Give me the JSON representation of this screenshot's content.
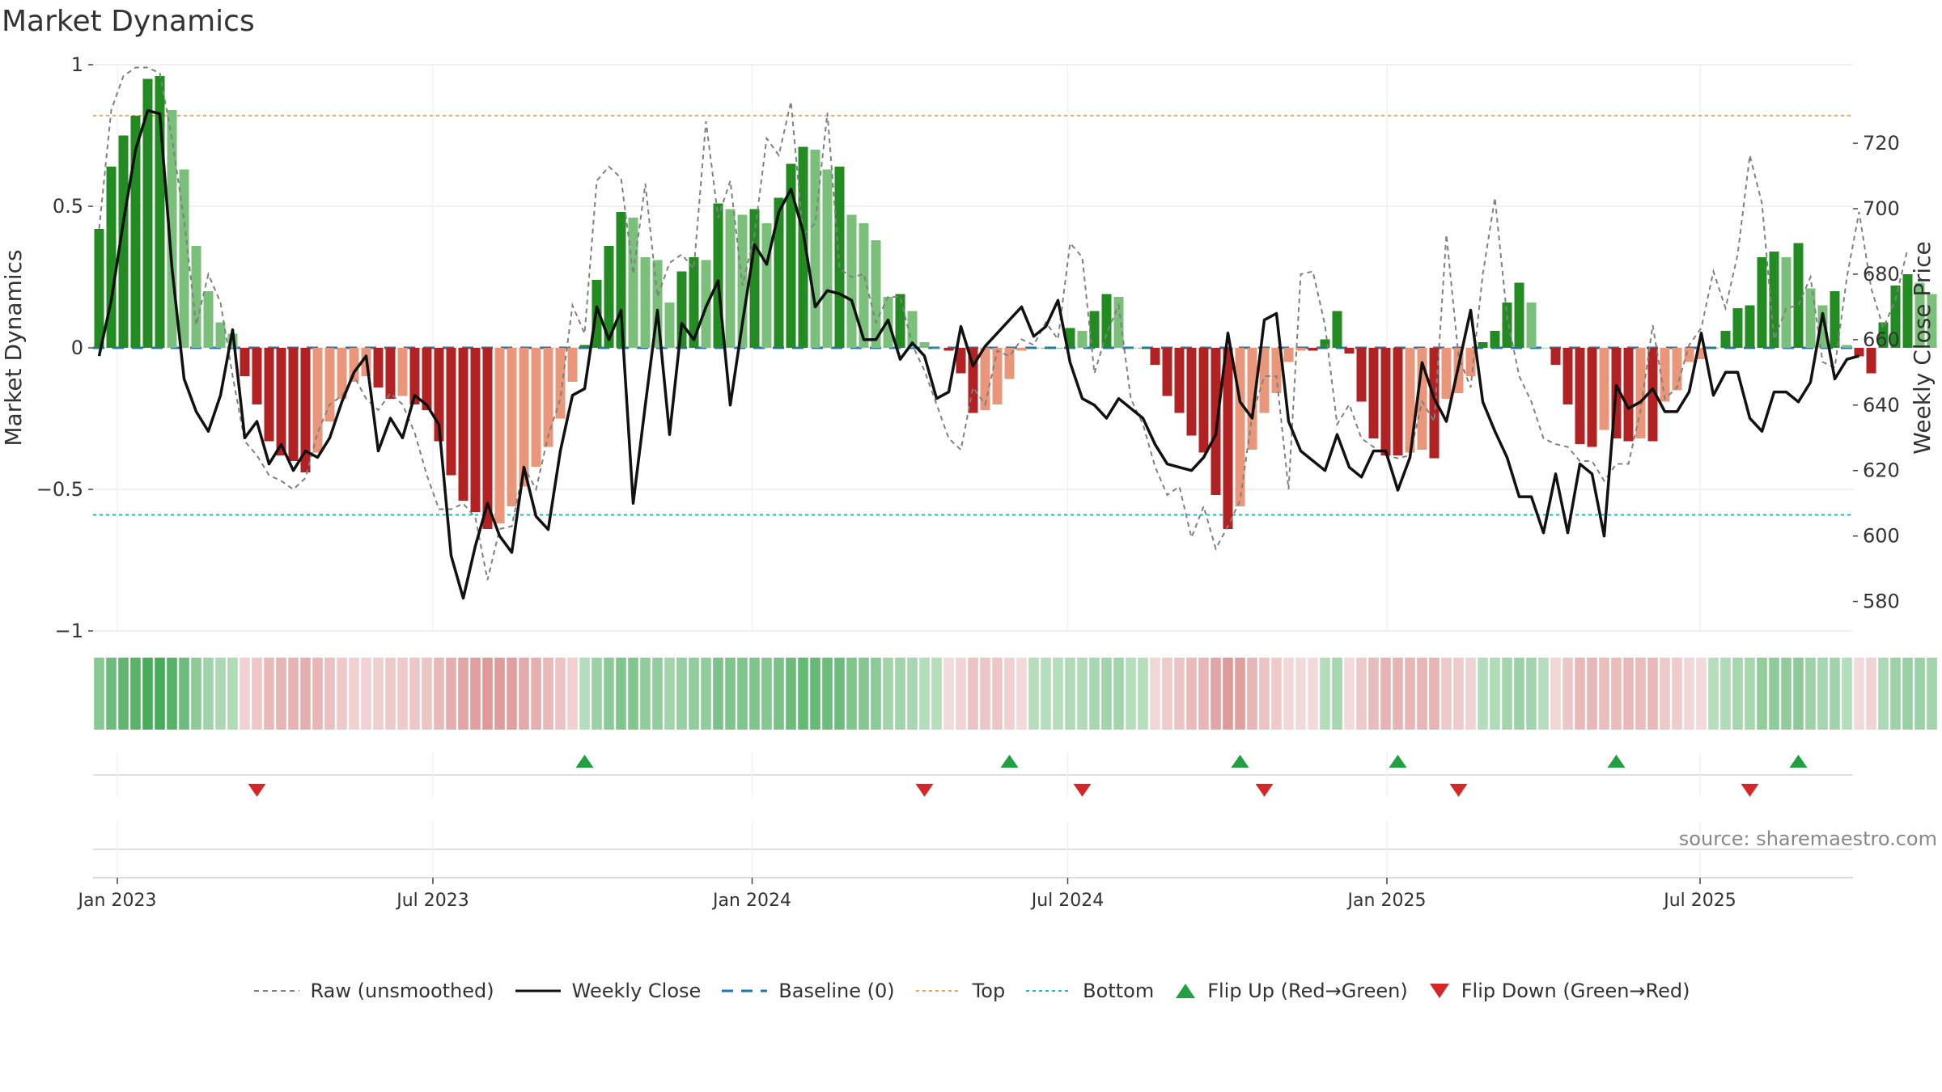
{
  "title": "Market Dynamics",
  "source": "source: sharemaestro.com",
  "legend": {
    "raw": "Raw (unsmoothed)",
    "close": "Weekly Close",
    "baseline": "Baseline (0)",
    "top": "Top",
    "bottom": "Bottom",
    "flip_up": "Flip Up (Red→Green)",
    "flip_down": "Flip Down (Green→Red)"
  },
  "chart_data": {
    "type": "bar",
    "title": "Market Dynamics",
    "ylabel": "Market Dynamics",
    "y2label": "Weekly Close Price",
    "ylim": [
      -1,
      1
    ],
    "y2lim": [
      571,
      744
    ],
    "yticks": [
      1,
      0.5,
      0,
      -0.5,
      -1
    ],
    "yticklabels": [
      "1",
      "0.5",
      "0",
      "−0.5",
      "−1"
    ],
    "y2ticks": [
      720,
      700,
      680,
      660,
      640,
      620,
      600,
      580
    ],
    "xticks": [
      {
        "label": "Jan 2023",
        "week": 2
      },
      {
        "label": "Jul 2023",
        "week": 28
      },
      {
        "label": "Jan 2024",
        "week": 54.3
      },
      {
        "label": "Jul 2024",
        "week": 80.3
      },
      {
        "label": "Jan 2025",
        "week": 106.6
      },
      {
        "label": "Jul 2025",
        "week": 132.4
      }
    ],
    "top_line": 0.82,
    "bottom_line": -0.59,
    "baseline": 0,
    "weeks": 145,
    "series": [
      {
        "name": "Market Dynamics",
        "type": "bar",
        "values": [
          0.42,
          0.64,
          0.75,
          0.82,
          0.95,
          0.96,
          0.84,
          0.63,
          0.36,
          0.2,
          0.09,
          0.05,
          -0.1,
          -0.2,
          -0.33,
          -0.38,
          -0.4,
          -0.44,
          -0.37,
          -0.26,
          -0.18,
          -0.12,
          -0.1,
          -0.14,
          -0.18,
          -0.17,
          -0.2,
          -0.22,
          -0.33,
          -0.45,
          -0.54,
          -0.58,
          -0.64,
          -0.62,
          -0.56,
          -0.49,
          -0.42,
          -0.35,
          -0.25,
          -0.12,
          0.01,
          0.24,
          0.36,
          0.48,
          0.46,
          0.32,
          0.31,
          0.16,
          0.27,
          0.32,
          0.31,
          0.51,
          0.49,
          0.47,
          0.49,
          0.44,
          0.53,
          0.65,
          0.71,
          0.7,
          0.63,
          0.64,
          0.47,
          0.44,
          0.38,
          0.18,
          0.19,
          0.13,
          0.02,
          0.0,
          -0.01,
          -0.09,
          -0.23,
          -0.22,
          -0.2,
          -0.11,
          -0.01,
          0.0,
          0.0,
          0.0,
          0.07,
          0.06,
          0.13,
          0.19,
          0.18,
          0.0,
          0.0,
          -0.06,
          -0.17,
          -0.23,
          -0.31,
          -0.37,
          -0.52,
          -0.64,
          -0.56,
          -0.36,
          -0.23,
          -0.16,
          -0.05,
          -0.01,
          -0.01,
          0.03,
          0.13,
          -0.02,
          -0.19,
          -0.32,
          -0.38,
          -0.38,
          -0.37,
          -0.36,
          -0.39,
          -0.18,
          -0.16,
          -0.1,
          0.02,
          0.06,
          0.16,
          0.23,
          0.16,
          0.0,
          -0.06,
          -0.2,
          -0.34,
          -0.35,
          -0.29,
          -0.32,
          -0.33,
          -0.32,
          -0.33,
          -0.19,
          -0.15,
          -0.05,
          -0.04,
          0.0,
          0.06,
          0.14,
          0.15,
          0.32,
          0.34,
          0.32,
          0.37,
          0.21,
          0.15,
          0.2,
          0.01,
          -0.03,
          -0.09,
          0.09,
          0.22,
          0.26,
          0.23,
          0.19
        ]
      },
      {
        "name": "Raw (unsmoothed)",
        "type": "line",
        "values": [
          0.42,
          0.84,
          0.96,
          0.99,
          0.99,
          0.97,
          0.74,
          0.45,
          0.08,
          0.26,
          0.16,
          -0.1,
          -0.33,
          -0.38,
          -0.45,
          -0.47,
          -0.5,
          -0.46,
          -0.3,
          -0.2,
          -0.17,
          -0.1,
          -0.18,
          -0.22,
          -0.16,
          -0.2,
          -0.3,
          -0.45,
          -0.57,
          -0.57,
          -0.55,
          -0.6,
          -0.82,
          -0.64,
          -0.63,
          -0.42,
          -0.5,
          -0.31,
          -0.18,
          0.15,
          0.05,
          0.59,
          0.64,
          0.6,
          0.26,
          0.58,
          0.18,
          0.3,
          0.33,
          0.28,
          0.8,
          0.46,
          0.59,
          0.22,
          0.4,
          0.74,
          0.68,
          0.87,
          0.4,
          0.44,
          0.83,
          0.28,
          0.25,
          0.26,
          0.09,
          0.18,
          0.18,
          0.01,
          -0.08,
          -0.2,
          -0.32,
          -0.36,
          -0.14,
          -0.2,
          -0.01,
          -0.03,
          0.03,
          0.01,
          0.09,
          0.03,
          0.37,
          0.32,
          -0.09,
          0.05,
          0.15,
          -0.18,
          -0.27,
          -0.42,
          -0.52,
          -0.49,
          -0.67,
          -0.56,
          -0.71,
          -0.63,
          -0.54,
          -0.24,
          -0.1,
          -0.1,
          -0.5,
          0.26,
          0.27,
          0.08,
          -0.27,
          -0.2,
          -0.32,
          -0.35,
          -0.38,
          -0.39,
          -0.38,
          -0.19,
          -0.26,
          0.4,
          -0.03,
          -0.14,
          0.26,
          0.53,
          0.11,
          -0.1,
          -0.19,
          -0.32,
          -0.34,
          -0.35,
          -0.4,
          -0.4,
          -0.47,
          -0.41,
          -0.41,
          -0.22,
          0.08,
          -0.18,
          -0.14,
          0.01,
          0.07,
          0.27,
          0.14,
          0.33,
          0.68,
          0.51,
          0.03,
          0.14,
          0.15,
          0.25,
          -0.05,
          -0.07,
          0.25,
          0.48,
          0.21,
          0.07,
          0.17,
          0.35
        ]
      },
      {
        "name": "Weekly Close",
        "type": "line",
        "axis": "right",
        "values": [
          655,
          672,
          696,
          718,
          730,
          729,
          682,
          648,
          638,
          632,
          643,
          663,
          630,
          635,
          622,
          628,
          620,
          626,
          624,
          630,
          641,
          650,
          655,
          626,
          636,
          630,
          643,
          640,
          634,
          594,
          581,
          597,
          610,
          600,
          595,
          621,
          606,
          602,
          626,
          643,
          645,
          670,
          660,
          669,
          610,
          640,
          669,
          631,
          665,
          660,
          670,
          678,
          640,
          665,
          689,
          683,
          699,
          706,
          693,
          670,
          675,
          674,
          672,
          660,
          660,
          666,
          654,
          659,
          655,
          642,
          644,
          664,
          652,
          658,
          662,
          666,
          670,
          661,
          664,
          672,
          653,
          642,
          640,
          636,
          642,
          639,
          636,
          628,
          622,
          621,
          620,
          624,
          631,
          662,
          641,
          636,
          666,
          668,
          635,
          626,
          623,
          620,
          631,
          621,
          618,
          626,
          626,
          614,
          624,
          653,
          642,
          635,
          652,
          669,
          641,
          632,
          624,
          612,
          612,
          601,
          619,
          601,
          622,
          619,
          600,
          646,
          639,
          641,
          645,
          638,
          638,
          644,
          662,
          643,
          650,
          650,
          636,
          632,
          644,
          644,
          641,
          647,
          668,
          648,
          654,
          655
        ]
      }
    ],
    "markers": {
      "flip_up_weeks": [
        40,
        75,
        94,
        107,
        125,
        140
      ],
      "flip_down_weeks": [
        13,
        68,
        81,
        96,
        112,
        136
      ]
    }
  },
  "colors": {
    "green_strong": "#228b22",
    "green_light": "#7abf7a",
    "red_strong": "#b22222",
    "red_light": "#e9967a",
    "raw_line": "#808080",
    "close_line": "#111111",
    "baseline": "#1f77b4",
    "top": "#f4a460",
    "bottom": "#17becf",
    "marker_up": "#20a040",
    "marker_down": "#d62728"
  }
}
